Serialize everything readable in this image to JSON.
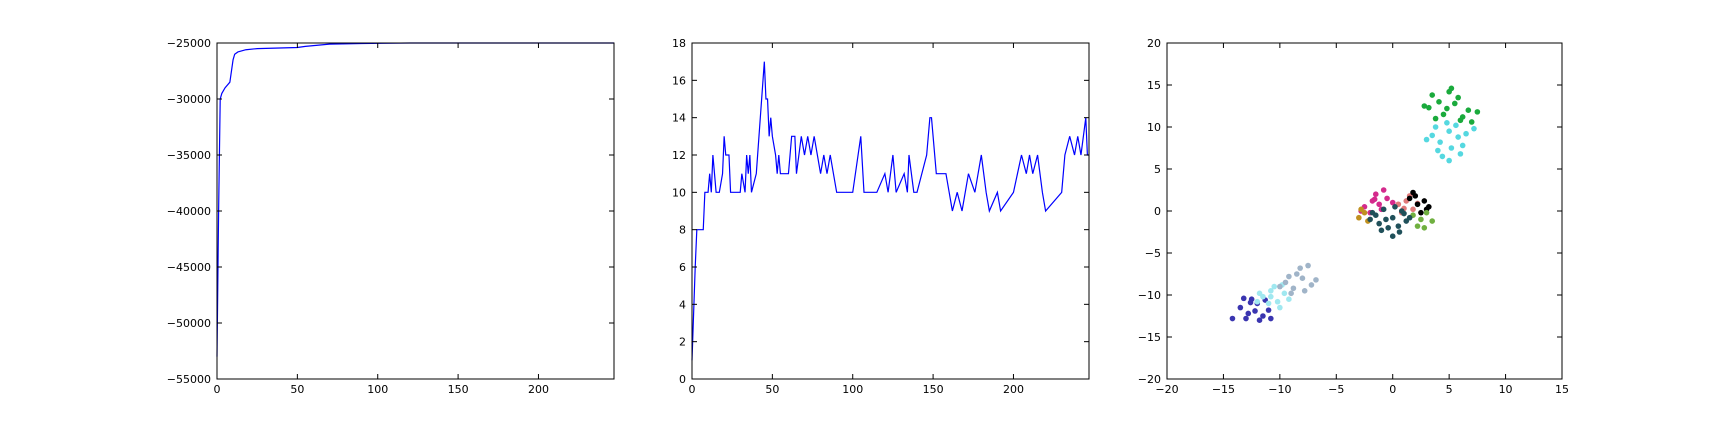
{
  "chart_data": [
    {
      "type": "line",
      "color": "#0000ff",
      "x": [
        0,
        1,
        2,
        3,
        5,
        8,
        10,
        11,
        13,
        18,
        25,
        50,
        55,
        70,
        90,
        120,
        247
      ],
      "values": [
        -53000,
        -40000,
        -30000,
        -29500,
        -29000,
        -28500,
        -26500,
        -26000,
        -25800,
        -25600,
        -25500,
        -25400,
        -25300,
        -25100,
        -25050,
        -25000,
        -25000
      ],
      "xlim": [
        0,
        247
      ],
      "ylim": [
        -55000,
        -25000
      ],
      "xticks": [
        0,
        50,
        100,
        150,
        200
      ],
      "yticks": [
        {
          "value": -55000,
          "label": "−55000"
        },
        {
          "value": -50000,
          "label": "−50000"
        },
        {
          "value": -45000,
          "label": "−45000"
        },
        {
          "value": -40000,
          "label": "−40000"
        },
        {
          "value": -35000,
          "label": "−35000"
        },
        {
          "value": -30000,
          "label": "−30000"
        },
        {
          "value": -25000,
          "label": "−25000"
        }
      ]
    },
    {
      "type": "line",
      "color": "#0000ff",
      "x": [
        0,
        2,
        3,
        7,
        8,
        10,
        11,
        12,
        13,
        14,
        15,
        17,
        19,
        20,
        21,
        23,
        24,
        30,
        31,
        33,
        34,
        35,
        36,
        37,
        40,
        45,
        46,
        47,
        48,
        49,
        50,
        52,
        53,
        54,
        55,
        60,
        62,
        64,
        65,
        68,
        70,
        72,
        74,
        76,
        78,
        80,
        82,
        84,
        86,
        88,
        90,
        100,
        105,
        107,
        115,
        120,
        122,
        125,
        127,
        132,
        134,
        135,
        138,
        140,
        146,
        148,
        149,
        152,
        158,
        160,
        162,
        165,
        168,
        172,
        176,
        180,
        183,
        185,
        190,
        192,
        200,
        205,
        208,
        210,
        212,
        215,
        218,
        220,
        230,
        232,
        235,
        238,
        240,
        242,
        245,
        246,
        247
      ],
      "values": [
        1,
        6,
        8,
        8,
        10,
        10,
        11,
        10,
        12,
        11,
        10,
        10,
        11,
        13,
        12,
        12,
        10,
        10,
        11,
        10,
        12,
        11,
        12,
        10,
        11,
        17,
        15,
        15,
        13,
        14,
        13,
        12,
        11,
        12,
        11,
        11,
        13,
        13,
        11,
        13,
        12,
        13,
        12,
        13,
        12,
        11,
        12,
        11,
        12,
        11,
        10,
        10,
        13,
        10,
        10,
        11,
        10,
        12,
        10,
        11,
        10,
        12,
        10,
        10,
        12,
        14,
        14,
        11,
        11,
        10,
        9,
        10,
        9,
        11,
        10,
        12,
        10,
        9,
        10,
        9,
        10,
        12,
        11,
        12,
        11,
        12,
        10,
        9,
        10,
        12,
        13,
        12,
        13,
        12,
        14,
        12,
        12
      ],
      "xlim": [
        0,
        247
      ],
      "ylim": [
        0,
        18
      ],
      "xticks": [
        0,
        50,
        100,
        150,
        200
      ],
      "yticks": [
        0,
        2,
        4,
        6,
        8,
        10,
        12,
        14,
        16,
        18
      ]
    },
    {
      "type": "scatter",
      "xlim": [
        -20,
        15
      ],
      "ylim": [
        -20,
        20
      ],
      "xticks": [
        {
          "value": -20,
          "label": "−20"
        },
        {
          "value": -15,
          "label": "−15"
        },
        {
          "value": -10,
          "label": "−10"
        },
        {
          "value": -5,
          "label": "−5"
        },
        0,
        5,
        10,
        15
      ],
      "yticks": [
        {
          "value": -20,
          "label": "−20"
        },
        {
          "value": -15,
          "label": "−15"
        },
        {
          "value": -10,
          "label": "−10"
        },
        {
          "value": -5,
          "label": "−5"
        },
        0,
        5,
        10,
        15,
        20
      ],
      "series": [
        {
          "color": "#1aaa3c",
          "x": [
            3.2,
            4.1,
            5.0,
            5.8,
            6.7,
            4.5,
            5.5,
            3.8,
            6.2,
            7.5,
            2.8,
            5.2,
            4.8,
            6.0,
            3.5,
            7.0
          ],
          "values": [
            12.3,
            13.0,
            14.2,
            13.5,
            12.0,
            11.5,
            12.8,
            11.0,
            11.2,
            11.8,
            12.5,
            14.6,
            12.2,
            10.8,
            13.8,
            10.6
          ]
        },
        {
          "color": "#55d8e0",
          "x": [
            3.5,
            4.2,
            5.0,
            5.8,
            6.5,
            4.0,
            5.2,
            6.2,
            3.8,
            4.8,
            5.6,
            7.2,
            3.0,
            5.0,
            4.4,
            6.0
          ],
          "values": [
            9.0,
            8.2,
            9.5,
            8.8,
            9.2,
            7.2,
            7.5,
            7.8,
            10.0,
            10.5,
            10.2,
            9.8,
            8.5,
            6.0,
            6.5,
            6.8
          ]
        },
        {
          "color": "#3a35b0",
          "x": [
            -13.5,
            -12.8,
            -12.0,
            -11.5,
            -11.0,
            -12.5,
            -11.8,
            -13.0,
            -12.2,
            -10.8,
            -14.2,
            -12.6,
            -11.3,
            -13.2
          ],
          "values": [
            -11.5,
            -12.2,
            -11.0,
            -12.5,
            -11.8,
            -10.5,
            -13.0,
            -12.8,
            -11.9,
            -12.8,
            -12.8,
            -10.9,
            -10.6,
            -10.4
          ]
        },
        {
          "color": "#a0e8f0",
          "x": [
            -11.5,
            -10.8,
            -10.2,
            -9.6,
            -11.0,
            -10.0,
            -9.2,
            -11.8,
            -10.5,
            -9.8,
            -10.8,
            -12.0
          ],
          "values": [
            -10.2,
            -9.5,
            -10.8,
            -9.8,
            -11.0,
            -11.5,
            -10.5,
            -9.8,
            -9.0,
            -8.8,
            -10.2,
            -10.8
          ]
        },
        {
          "color": "#a0b4c8",
          "x": [
            -9.5,
            -8.8,
            -8.0,
            -7.2,
            -8.5,
            -9.2,
            -7.8,
            -6.8,
            -8.2,
            -9.0,
            -7.5,
            -10.0
          ],
          "values": [
            -8.5,
            -9.2,
            -8.0,
            -8.8,
            -7.5,
            -7.8,
            -9.5,
            -8.2,
            -6.8,
            -9.8,
            -6.5,
            -9.0
          ]
        },
        {
          "color": "#d42a8c",
          "x": [
            -2.5,
            -1.8,
            -1.2,
            -0.5,
            -2.0,
            -1.5,
            -0.8,
            -2.8,
            -1.0,
            0.0,
            -1.6
          ],
          "values": [
            0.5,
            1.2,
            0.8,
            1.5,
            -0.2,
            2.0,
            2.5,
            0.0,
            0.2,
            1.0,
            1.4
          ]
        },
        {
          "color": "#e07a7a",
          "x": [
            0.5,
            1.2,
            1.8,
            0.8,
            1.5,
            2.2,
            1.0
          ],
          "values": [
            0.8,
            1.2,
            0.2,
            -0.2,
            1.8,
            0.9,
            0.3
          ]
        },
        {
          "color": "#000000",
          "x": [
            1.5,
            2.2,
            2.8,
            3.0,
            1.8,
            2.5,
            3.2,
            2.0
          ],
          "values": [
            1.5,
            0.8,
            1.2,
            0.2,
            2.2,
            -0.2,
            0.5,
            1.8
          ]
        },
        {
          "color": "#70b040",
          "x": [
            1.8,
            2.5,
            3.0,
            2.2,
            3.5,
            2.8
          ],
          "values": [
            -0.5,
            -1.0,
            -0.2,
            -1.8,
            -1.2,
            -2.0
          ]
        },
        {
          "color": "#c09020",
          "x": [
            -3.0,
            -2.5,
            -2.2,
            -2.8
          ],
          "values": [
            -0.8,
            -0.2,
            -1.2,
            0.2
          ]
        },
        {
          "color": "#20505a",
          "x": [
            -1.5,
            -0.8,
            0.0,
            0.8,
            1.2,
            -1.2,
            -0.4,
            0.5,
            -1.8,
            0.2,
            1.0,
            -0.6,
            0.6,
            -1.0,
            0.0,
            1.5,
            -2.0
          ],
          "values": [
            -0.5,
            0.2,
            -0.8,
            0.0,
            -1.2,
            -1.5,
            -2.0,
            -1.8,
            -0.2,
            0.5,
            -0.3,
            -1.0,
            -2.5,
            -2.3,
            -3.0,
            -0.8,
            -1.0
          ]
        }
      ]
    }
  ]
}
